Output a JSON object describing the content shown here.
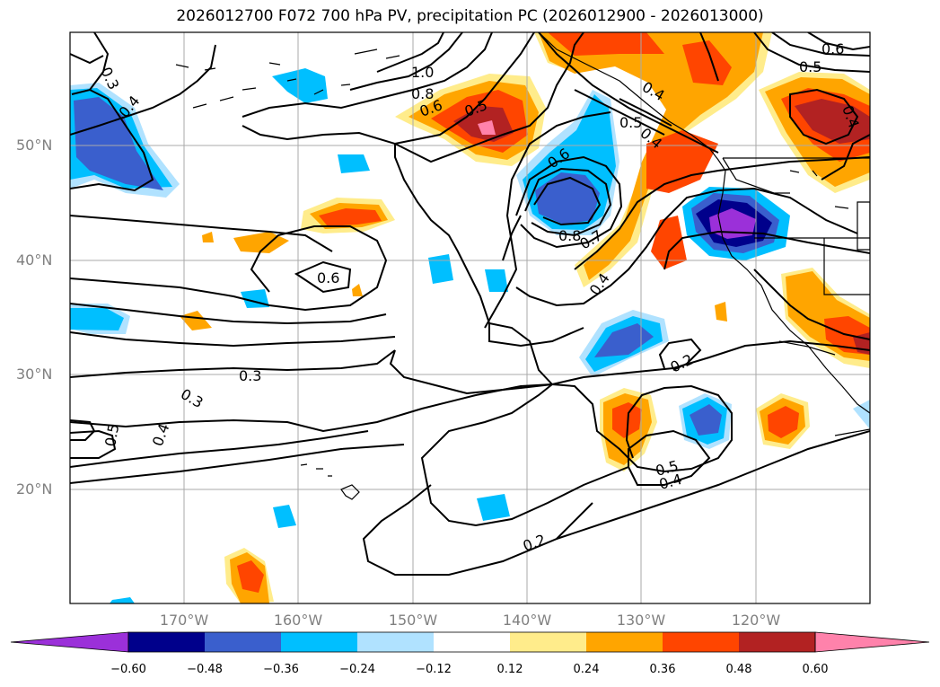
{
  "title": "2026012700 F072 700 hPa PV, precipitation PC (2026012900 - 2026013000)",
  "latitudes": [
    "50°N",
    "40°N",
    "30°N",
    "20°N"
  ],
  "longitudes": [
    "170°W",
    "160°W",
    "150°W",
    "140°W",
    "130°W",
    "120°W"
  ],
  "contour_labels": [
    "0.3",
    "0.4",
    "1.0",
    "0.8",
    "0.6",
    "0.5",
    "0.4",
    "0.5",
    "0.6",
    "0.5",
    "0.4",
    "0.6",
    "0.8",
    "0.7",
    "0.4",
    "0.6",
    "0.3",
    "0.3",
    "0.5",
    "0.4",
    "0.2",
    "0.5",
    "0.4",
    "0.2",
    "0.4"
  ],
  "colorbar": {
    "colors": [
      "#9b30d9",
      "#00008b",
      "#3a5fcd",
      "#00bfff",
      "#b0e2ff",
      "#ffffff",
      "#ffec8b",
      "#ffa500",
      "#ff4500",
      "#b22222",
      "#ff82ab"
    ],
    "ticks": [
      "−0.60",
      "−0.48",
      "−0.36",
      "−0.24",
      "−0.12",
      "0.12",
      "0.24",
      "0.36",
      "0.48",
      "0.60"
    ]
  }
}
